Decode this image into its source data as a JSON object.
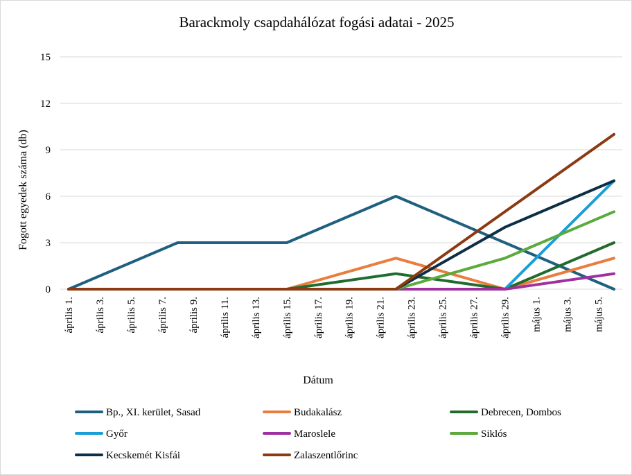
{
  "chart_data": {
    "type": "line",
    "title": "Barackmoly csapdahálózat fogási adatai - 2025",
    "xlabel": "Dátum",
    "ylabel": "Fogott egyedek száma (db)",
    "ylim": [
      0,
      15
    ],
    "yticks": [
      "0",
      "3",
      "6",
      "9",
      "12",
      "15"
    ],
    "grid": "horizontal",
    "legend_position": "bottom",
    "categories": [
      "április 1.",
      "április 3.",
      "április 5.",
      "április 7.",
      "április 9.",
      "április 11.",
      "április 13.",
      "április 15.",
      "április 17.",
      "április 19.",
      "április 21.",
      "április 23.",
      "április 25.",
      "április 27.",
      "április 29.",
      "május 1.",
      "május 3.",
      "május 5."
    ],
    "series": [
      {
        "name": "Bp., XI. kerület, Sasad",
        "color": "#1f5f7f",
        "points": [
          [
            0,
            0
          ],
          [
            3.5,
            3
          ],
          [
            7.0,
            3
          ],
          [
            10.5,
            6
          ],
          [
            17.5,
            0
          ]
        ]
      },
      {
        "name": "Budakalász",
        "color": "#e87d3e",
        "points": [
          [
            0,
            0
          ],
          [
            7.0,
            0
          ],
          [
            10.5,
            2
          ],
          [
            14.0,
            0
          ],
          [
            17.5,
            2
          ]
        ]
      },
      {
        "name": "Debrecen, Dombos",
        "color": "#216b2e",
        "points": [
          [
            0,
            0
          ],
          [
            7.0,
            0
          ],
          [
            10.5,
            1
          ],
          [
            14.0,
            0
          ],
          [
            17.5,
            3
          ]
        ]
      },
      {
        "name": "Győr",
        "color": "#1a9ed6",
        "points": [
          [
            0,
            0
          ],
          [
            14.0,
            0
          ],
          [
            17.5,
            7
          ]
        ]
      },
      {
        "name": "Maroslele",
        "color": "#a0309f",
        "points": [
          [
            0,
            0
          ],
          [
            14.0,
            0
          ],
          [
            17.5,
            1
          ]
        ]
      },
      {
        "name": "Siklós",
        "color": "#5aaa3c",
        "points": [
          [
            0,
            0
          ],
          [
            10.5,
            0
          ],
          [
            14.0,
            2
          ],
          [
            17.5,
            5
          ]
        ]
      },
      {
        "name": "Kecskemét Kisfái",
        "color": "#0d2f45",
        "points": [
          [
            0,
            0
          ],
          [
            10.5,
            0
          ],
          [
            14.0,
            4
          ],
          [
            17.5,
            7
          ]
        ]
      },
      {
        "name": "Zalaszentlőrinc",
        "color": "#8b3a12",
        "points": [
          [
            0,
            0
          ],
          [
            10.5,
            0
          ],
          [
            14.0,
            5
          ],
          [
            17.5,
            10
          ]
        ]
      }
    ]
  }
}
